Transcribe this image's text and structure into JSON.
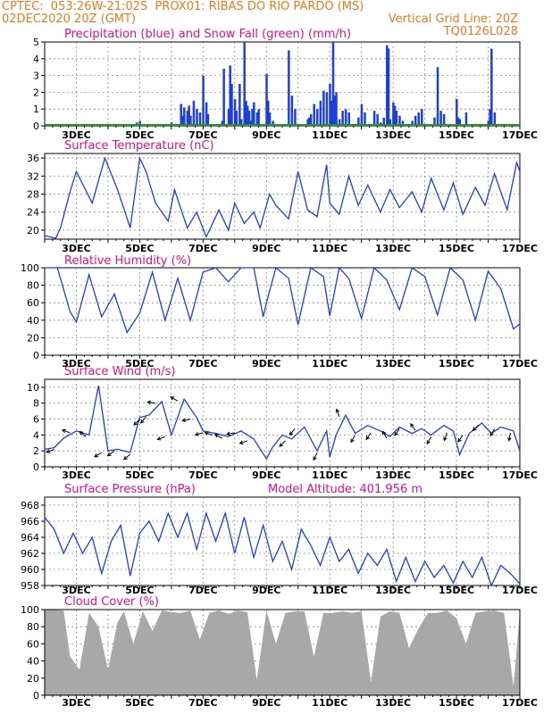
{
  "header": {
    "line1_left": "CPTEC:  053:26W-21:02S  PROX01: RIBAS DO RIO PARDO (MS)",
    "line2_left": "02DEC2020 20Z (GMT)",
    "line2_right": "Vertical Grid Line: 20Z",
    "line3_right": "TQ0126L028"
  },
  "colors": {
    "header": "#e87a1e",
    "title": "#e0108a",
    "line": "#1f3fd9",
    "snow": "#1a9a1a",
    "cloud": "#a8a8a8",
    "grid": "#888888"
  },
  "x_labels": [
    "3DEC",
    "5DEC",
    "7DEC",
    "9DEC",
    "11DEC",
    "13DEC",
    "15DEC",
    "17DEC"
  ],
  "chart_data": [
    {
      "id": "precip",
      "type": "bar",
      "title": "Precipitation (blue) and Snow Fall (green) (mm/h)",
      "ylim": [
        0,
        5
      ],
      "yticks": [
        0,
        1,
        2,
        3,
        4,
        5
      ],
      "x_range_days": [
        2.0,
        17.0
      ],
      "bars_x_day": [
        4.9,
        5.0,
        6.0,
        6.3,
        6.35,
        6.4,
        6.5,
        6.55,
        6.6,
        6.7,
        6.8,
        6.9,
        7.0,
        7.1,
        7.15,
        7.6,
        7.65,
        7.8,
        7.85,
        7.9,
        8.0,
        8.05,
        8.15,
        8.2,
        8.3,
        8.35,
        8.4,
        8.45,
        8.5,
        8.55,
        8.6,
        8.7,
        8.75,
        9.0,
        9.05,
        9.1,
        9.2,
        9.7,
        9.8,
        9.9,
        10.3,
        10.35,
        10.4,
        10.5,
        10.6,
        10.7,
        10.8,
        10.9,
        11.0,
        11.05,
        11.1,
        11.15,
        11.2,
        11.3,
        11.4,
        11.5,
        11.6,
        11.9,
        12.0,
        12.1,
        12.4,
        12.5,
        12.6,
        12.7,
        12.8,
        12.85,
        12.9,
        13.0,
        13.05,
        13.1,
        13.2,
        13.3,
        13.6,
        13.7,
        13.8,
        13.9,
        14.3,
        14.4,
        14.5,
        14.6,
        15.0,
        15.05,
        15.1,
        15.3,
        16.0,
        16.05,
        16.1,
        16.2
      ],
      "bars_value": [
        0.2,
        0.3,
        0.2,
        1.3,
        0.6,
        1.1,
        0.9,
        1.2,
        0.6,
        1.5,
        1.0,
        0.8,
        3.0,
        1.4,
        0.7,
        0.3,
        3.4,
        1.0,
        3.6,
        2.5,
        1.6,
        0.9,
        2.5,
        0.4,
        5.0,
        1.5,
        1.2,
        0.9,
        0.3,
        1.0,
        1.4,
        0.8,
        1.0,
        3.1,
        1.5,
        0.8,
        0.3,
        4.5,
        1.8,
        1.0,
        0.4,
        0.5,
        0.7,
        1.3,
        1.0,
        1.5,
        2.1,
        2.0,
        2.5,
        1.5,
        5.0,
        1.8,
        2.0,
        0.4,
        0.9,
        1.0,
        0.8,
        0.5,
        1.3,
        0.8,
        0.9,
        0.7,
        0.2,
        0.5,
        4.8,
        4.6,
        0.4,
        1.4,
        1.2,
        0.9,
        0.6,
        0.3,
        0.3,
        0.6,
        0.8,
        1.0,
        0.5,
        3.5,
        0.9,
        0.7,
        1.6,
        0.5,
        0.4,
        0.8,
        0.3,
        1.0,
        4.6,
        0.8
      ],
      "snow_values": "0 throughout"
    },
    {
      "id": "temp",
      "type": "line",
      "title": "Surface Temperature (nC)",
      "ylim": [
        18,
        37
      ],
      "yticks": [
        20,
        24,
        28,
        32,
        36
      ],
      "x": [
        2.0,
        2.35,
        2.5,
        2.8,
        3.0,
        3.5,
        3.9,
        4.3,
        4.7,
        5.0,
        5.2,
        5.5,
        5.9,
        6.1,
        6.5,
        6.8,
        7.1,
        7.5,
        7.8,
        8.0,
        8.3,
        8.6,
        8.8,
        9.1,
        9.3,
        9.7,
        10.0,
        10.3,
        10.6,
        10.9,
        11.0,
        11.3,
        11.6,
        11.9,
        12.2,
        12.6,
        12.9,
        13.2,
        13.6,
        13.9,
        14.2,
        14.6,
        14.9,
        15.2,
        15.6,
        15.9,
        16.2,
        16.6,
        16.9,
        17.0
      ],
      "y": [
        18.8,
        18.2,
        20.5,
        28.5,
        33.0,
        26.0,
        36.0,
        29.0,
        20.5,
        36.0,
        33.0,
        26.0,
        22.0,
        29.0,
        20.5,
        24.0,
        18.5,
        24.5,
        20.0,
        26.0,
        21.5,
        24.0,
        20.5,
        28.0,
        25.5,
        22.5,
        33.0,
        24.5,
        23.0,
        34.5,
        26.0,
        23.5,
        32.0,
        25.5,
        30.0,
        24.0,
        29.0,
        25.0,
        28.5,
        24.0,
        31.5,
        24.5,
        30.5,
        23.5,
        29.5,
        25.5,
        32.5,
        24.5,
        35.0,
        33.0
      ]
    },
    {
      "id": "rh",
      "type": "line",
      "title": "Relative Humidity (%)",
      "ylim": [
        0,
        100
      ],
      "yticks": [
        0,
        20,
        40,
        60,
        80,
        100
      ],
      "x": [
        2.0,
        2.4,
        2.8,
        3.0,
        3.4,
        3.8,
        4.2,
        4.6,
        5.0,
        5.4,
        5.8,
        6.2,
        6.6,
        7.0,
        7.4,
        7.8,
        8.2,
        8.6,
        8.9,
        9.0,
        9.3,
        9.7,
        10.0,
        10.4,
        10.8,
        11.0,
        11.3,
        11.6,
        12.0,
        12.4,
        12.8,
        13.2,
        13.6,
        14.0,
        14.4,
        14.8,
        15.2,
        15.6,
        16.0,
        16.4,
        16.8,
        17.0
      ],
      "y": [
        100,
        100,
        50,
        38,
        92,
        44,
        70,
        26,
        48,
        95,
        40,
        88,
        40,
        95,
        100,
        84,
        100,
        100,
        44,
        60,
        100,
        88,
        35,
        100,
        90,
        45,
        100,
        88,
        42,
        100,
        86,
        52,
        100,
        90,
        46,
        100,
        86,
        40,
        96,
        76,
        30,
        36
      ]
    },
    {
      "id": "wind",
      "type": "line",
      "title": "Surface Wind (m/s)",
      "ylim": [
        0,
        11
      ],
      "yticks": [
        0,
        2,
        4,
        6,
        8,
        10
      ],
      "x": [
        2.0,
        2.3,
        2.6,
        3.0,
        3.4,
        3.7,
        4.0,
        4.3,
        4.7,
        5.0,
        5.3,
        5.7,
        6.0,
        6.4,
        6.8,
        7.0,
        7.4,
        7.8,
        8.2,
        8.6,
        9.0,
        9.2,
        9.5,
        9.8,
        10.2,
        10.6,
        10.9,
        11.0,
        11.2,
        11.5,
        11.8,
        12.2,
        12.6,
        12.9,
        13.2,
        13.6,
        13.9,
        14.2,
        14.6,
        14.9,
        15.1,
        15.4,
        15.8,
        16.1,
        16.4,
        16.8,
        17.0
      ],
      "y": [
        2.2,
        2.4,
        3.6,
        4.5,
        4.0,
        10.2,
        2.0,
        2.2,
        1.8,
        6.2,
        6.5,
        8.2,
        4.0,
        8.5,
        6.2,
        4.5,
        4.2,
        3.8,
        4.5,
        3.5,
        1.0,
        2.5,
        4.0,
        3.5,
        5.0,
        2.0,
        4.5,
        1.2,
        4.0,
        6.5,
        4.2,
        5.2,
        4.5,
        3.8,
        5.0,
        4.2,
        4.8,
        4.0,
        5.2,
        4.5,
        1.5,
        4.2,
        5.5,
        4.2,
        5.0,
        4.5,
        2.0
      ],
      "arrows_x": [
        2.3,
        2.8,
        3.3,
        3.8,
        4.2,
        4.7,
        5.0,
        5.2,
        5.5,
        5.8,
        6.2,
        6.6,
        7.0,
        7.3,
        7.6,
        8.0,
        8.4,
        9.6,
        9.9,
        10.6,
        11.3,
        11.8,
        12.3,
        12.8,
        13.2,
        13.7,
        14.2,
        14.7,
        15.2,
        15.7,
        16.2,
        16.7
      ],
      "arrows_angle_deg": [
        200,
        160,
        140,
        210,
        215,
        220,
        225,
        230,
        170,
        200,
        150,
        190,
        195,
        160,
        150,
        190,
        200,
        225,
        230,
        245,
        110,
        240,
        235,
        120,
        235,
        125,
        240,
        250,
        235,
        225,
        240,
        260
      ]
    },
    {
      "id": "pressure",
      "type": "line",
      "title": "Surface Pressure (hPa)",
      "annotation": "Model Altitude: 401.956 m",
      "ylim": [
        958,
        969
      ],
      "yticks": [
        958,
        960,
        962,
        964,
        966,
        968
      ],
      "x": [
        2.0,
        2.3,
        2.6,
        2.9,
        3.2,
        3.5,
        3.8,
        4.1,
        4.4,
        4.7,
        5.0,
        5.3,
        5.6,
        5.9,
        6.2,
        6.5,
        6.8,
        7.1,
        7.4,
        7.7,
        8.0,
        8.3,
        8.6,
        8.9,
        9.2,
        9.5,
        9.8,
        10.1,
        10.4,
        10.7,
        11.0,
        11.3,
        11.6,
        11.9,
        12.2,
        12.5,
        12.8,
        13.1,
        13.4,
        13.7,
        14.0,
        14.3,
        14.6,
        14.9,
        15.2,
        15.5,
        15.8,
        16.1,
        16.4,
        16.7,
        17.0
      ],
      "y": [
        966.5,
        965.0,
        962.0,
        964.5,
        962.0,
        964.0,
        959.5,
        963.5,
        965.5,
        959.2,
        964.5,
        966.0,
        963.5,
        967.0,
        964.0,
        967.0,
        962.5,
        967.0,
        963.5,
        967.0,
        962.0,
        966.5,
        961.5,
        965.5,
        961.0,
        963.5,
        960.0,
        965.0,
        963.0,
        960.5,
        964.0,
        961.0,
        962.5,
        959.5,
        962.0,
        960.5,
        962.5,
        958.5,
        961.5,
        958.5,
        961.0,
        959.0,
        960.5,
        958.3,
        961.0,
        959.0,
        961.5,
        958.0,
        960.5,
        959.5,
        958.2
      ]
    },
    {
      "id": "cloud",
      "type": "area",
      "title": "Cloud Cover (%)",
      "ylim": [
        0,
        100
      ],
      "yticks": [
        0,
        20,
        40,
        60,
        80,
        100
      ],
      "x": [
        2.0,
        2.6,
        2.8,
        3.1,
        3.4,
        3.7,
        4.0,
        4.3,
        4.5,
        4.8,
        5.1,
        5.4,
        5.7,
        6.0,
        6.3,
        6.6,
        6.9,
        7.2,
        7.5,
        7.8,
        8.1,
        8.4,
        8.7,
        9.0,
        9.3,
        9.6,
        9.9,
        10.2,
        10.5,
        10.8,
        11.1,
        11.4,
        11.7,
        12.0,
        12.3,
        12.6,
        12.9,
        13.2,
        13.5,
        13.8,
        14.1,
        14.4,
        14.7,
        15.0,
        15.3,
        15.6,
        15.9,
        16.2,
        16.5,
        16.8,
        17.0
      ],
      "y": [
        100,
        99,
        45,
        30,
        96,
        80,
        30,
        85,
        98,
        60,
        98,
        75,
        99,
        97,
        96,
        99,
        65,
        96,
        99,
        95,
        99,
        97,
        18,
        99,
        60,
        96,
        98,
        98,
        45,
        96,
        96,
        98,
        96,
        98,
        15,
        92,
        98,
        96,
        55,
        78,
        96,
        96,
        99,
        90,
        60,
        96,
        98,
        99,
        96,
        10,
        98
      ]
    }
  ]
}
